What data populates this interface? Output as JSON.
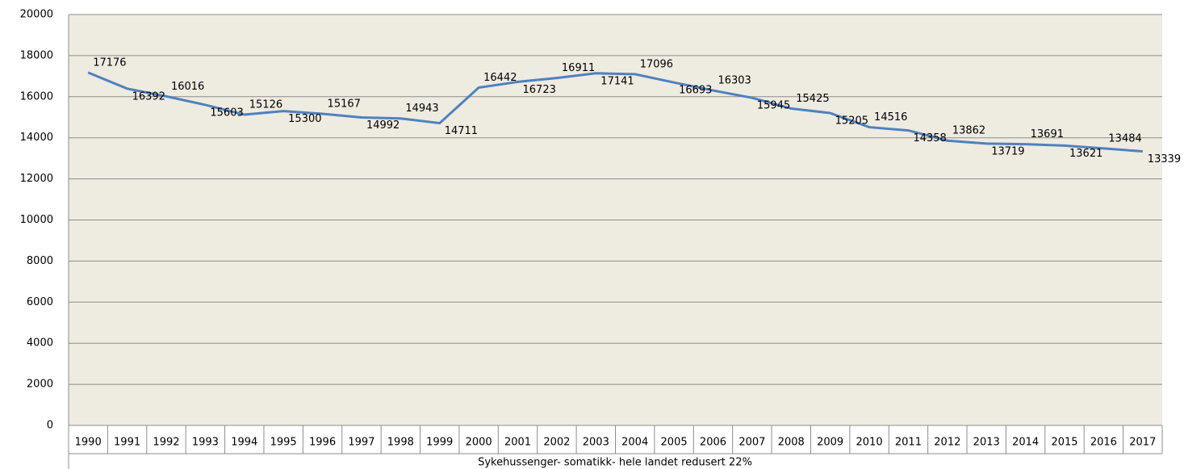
{
  "chart_data": {
    "type": "line",
    "x_axis_title": "Sykehussenger- somatikk- hele landet redusert 22%",
    "categories": [
      "1990",
      "1991",
      "1992",
      "1993",
      "1994",
      "1995",
      "1996",
      "1997",
      "1998",
      "1999",
      "2000",
      "2001",
      "2002",
      "2003",
      "2004",
      "2005",
      "2006",
      "2007",
      "2008",
      "2009",
      "2010",
      "2011",
      "2012",
      "2013",
      "2014",
      "2015",
      "2016",
      "2017"
    ],
    "series": [
      {
        "color": "#4f81bd",
        "values": [
          17176,
          16392,
          16016,
          15603,
          15126,
          15300,
          15167,
          14992,
          14943,
          14711,
          16442,
          16723,
          16911,
          17141,
          17096,
          16693,
          16303,
          15945,
          15425,
          15205,
          14516,
          14358,
          13862,
          13719,
          13691,
          13621,
          13484,
          13339
        ]
      }
    ],
    "ylim": [
      0,
      20000
    ],
    "yticks": [
      0,
      2000,
      4000,
      6000,
      8000,
      10000,
      12000,
      14000,
      16000,
      18000,
      20000
    ],
    "grid": true,
    "data_labels": true
  }
}
